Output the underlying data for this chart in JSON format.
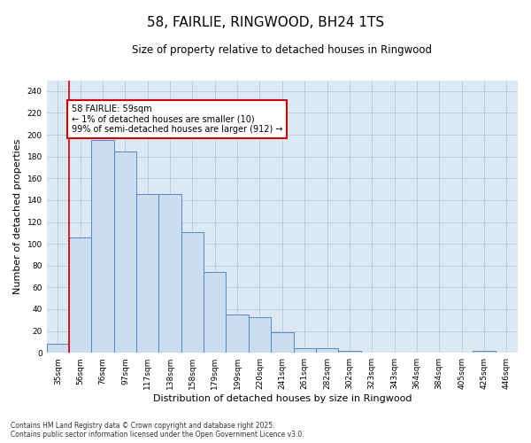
{
  "title": "58, FAIRLIE, RINGWOOD, BH24 1TS",
  "subtitle": "Size of property relative to detached houses in Ringwood",
  "xlabel": "Distribution of detached houses by size in Ringwood",
  "ylabel": "Number of detached properties",
  "footnote": "Contains HM Land Registry data © Crown copyright and database right 2025.\nContains public sector information licensed under the Open Government Licence v3.0.",
  "categories": [
    "35sqm",
    "56sqm",
    "76sqm",
    "97sqm",
    "117sqm",
    "138sqm",
    "158sqm",
    "179sqm",
    "199sqm",
    "220sqm",
    "241sqm",
    "261sqm",
    "282sqm",
    "302sqm",
    "323sqm",
    "343sqm",
    "364sqm",
    "384sqm",
    "405sqm",
    "425sqm",
    "446sqm"
  ],
  "bar_values": [
    8,
    106,
    195,
    185,
    146,
    146,
    111,
    74,
    35,
    33,
    19,
    4,
    4,
    2,
    0,
    0,
    0,
    0,
    0,
    2,
    0
  ],
  "bar_color": "#ccddf0",
  "bar_edgecolor": "#5588cc",
  "grid_color": "#b8c8dc",
  "bg_color": "#dde8f5",
  "annotation_text": "58 FAIRLIE: 59sqm\n← 1% of detached houses are smaller (10)\n99% of semi-detached houses are larger (912) →",
  "annotation_box_color": "#ffffff",
  "annotation_border_color": "#cc0000",
  "vline_color": "#cc0000",
  "ylim": [
    0,
    250
  ],
  "yticks": [
    0,
    20,
    40,
    60,
    80,
    100,
    120,
    140,
    160,
    180,
    200,
    220,
    240
  ],
  "title_fontsize": 11,
  "subtitle_fontsize": 8.5,
  "xlabel_fontsize": 8,
  "ylabel_fontsize": 8,
  "tick_fontsize": 6.5,
  "annot_fontsize": 7,
  "footnote_fontsize": 5.5
}
